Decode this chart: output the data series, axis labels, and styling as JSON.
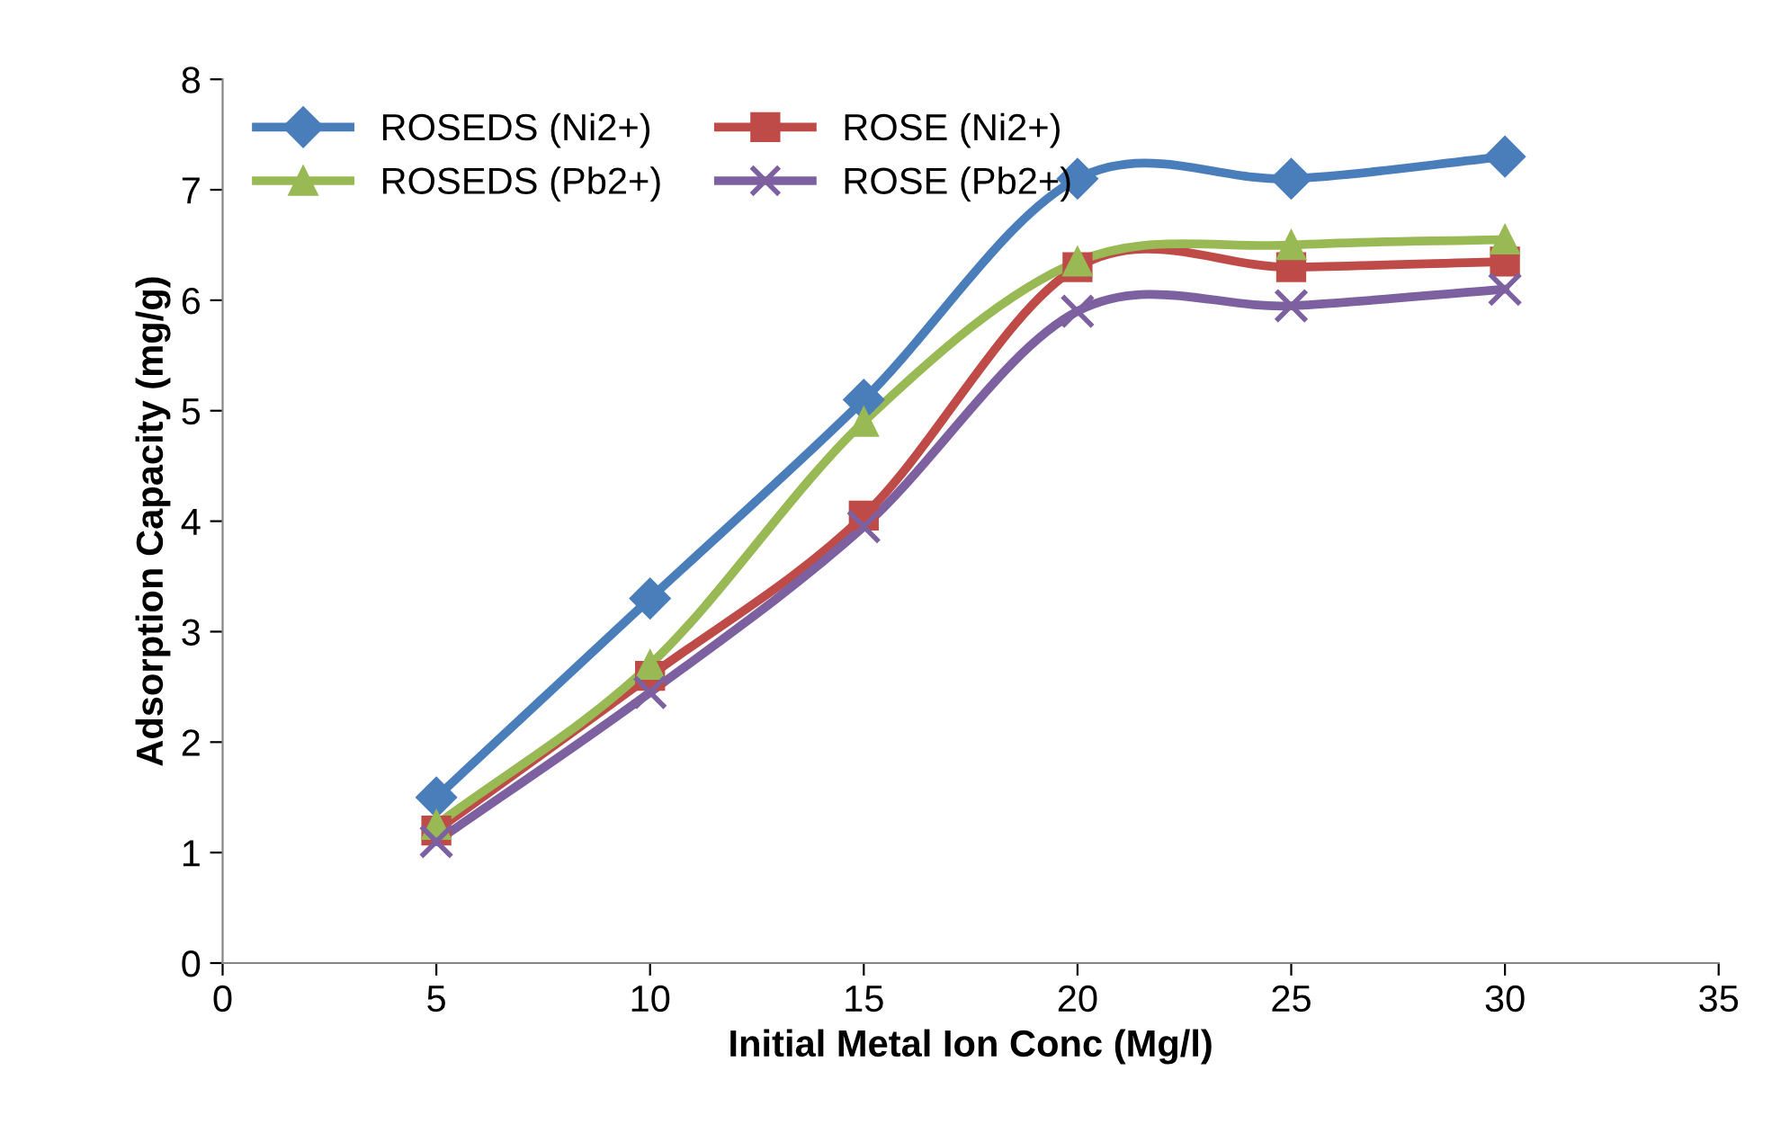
{
  "chart_data": {
    "type": "line",
    "xlabel": "Initial Metal Ion Conc (Mg/l)",
    "ylabel": "Adsorption Capacity (mg/g)",
    "x": [
      5,
      10,
      15,
      20,
      25,
      30
    ],
    "series": [
      {
        "name": "ROSEDS (Ni2+)",
        "color": "#4a7ebb",
        "marker": "diamond",
        "values": [
          1.5,
          3.3,
          5.1,
          7.1,
          7.1,
          7.3
        ]
      },
      {
        "name": "ROSE (Ni2+)",
        "color": "#be4b48",
        "marker": "square",
        "values": [
          1.2,
          2.6,
          4.05,
          6.3,
          6.3,
          6.35
        ]
      },
      {
        "name": "ROSEDS (Pb2+)",
        "color": "#98b954",
        "marker": "triangle",
        "values": [
          1.25,
          2.7,
          4.9,
          6.35,
          6.5,
          6.55
        ]
      },
      {
        "name": "ROSE (Pb2+)",
        "color": "#7d60a0",
        "marker": "cross",
        "values": [
          1.1,
          2.45,
          3.95,
          5.9,
          5.95,
          6.1
        ]
      }
    ],
    "xlim": [
      0,
      35
    ],
    "xticks": [
      0,
      5,
      10,
      15,
      20,
      25,
      30,
      35
    ],
    "ylim": [
      0,
      8
    ],
    "yticks": [
      0,
      1,
      2,
      3,
      4,
      5,
      6,
      7,
      8
    ],
    "grid": false,
    "legend": "top left",
    "line_style": "solid"
  }
}
